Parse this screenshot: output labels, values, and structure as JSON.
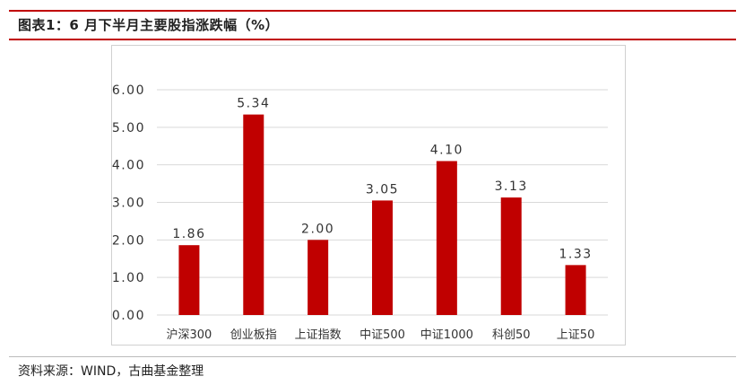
{
  "header": {
    "title": "图表1：6 月下半月主要股指涨跌幅（%）"
  },
  "footer": {
    "source": "资料来源：WIND，古曲基金整理"
  },
  "chart_data": {
    "type": "bar",
    "categories": [
      "沪深300",
      "创业板指",
      "上证指数",
      "中证500",
      "中证1000",
      "科创50",
      "上证50"
    ],
    "values": [
      1.86,
      5.34,
      2.0,
      3.05,
      4.1,
      3.13,
      1.33
    ],
    "value_labels": [
      "1.86",
      "5.34",
      "2.00",
      "3.05",
      "4.10",
      "3.13",
      "1.33"
    ],
    "ylim": [
      0,
      6
    ],
    "yticks": [
      0,
      1,
      2,
      3,
      4,
      5,
      6
    ],
    "ytick_labels": [
      "0.00",
      "1.00",
      "2.00",
      "3.00",
      "4.00",
      "5.00",
      "6.00"
    ],
    "xlabel": "",
    "ylabel": "",
    "grid": true,
    "bar_color": "#c00000",
    "grid_color": "#d9d9d9"
  }
}
